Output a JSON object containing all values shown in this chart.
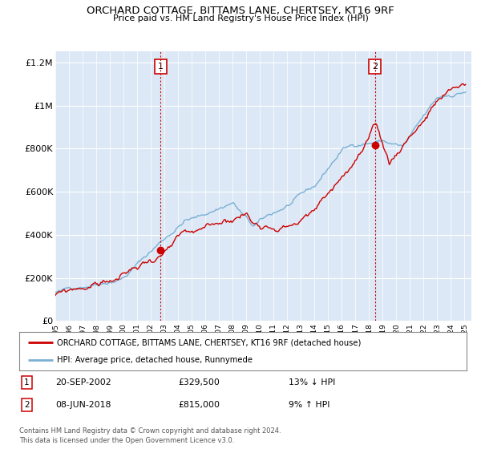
{
  "title": "ORCHARD COTTAGE, BITTAMS LANE, CHERTSEY, KT16 9RF",
  "subtitle": "Price paid vs. HM Land Registry's House Price Index (HPI)",
  "ylabel_ticks": [
    "£0",
    "£200K",
    "£400K",
    "£600K",
    "£800K",
    "£1M",
    "£1.2M"
  ],
  "ytick_values": [
    0,
    200000,
    400000,
    600000,
    800000,
    1000000,
    1200000
  ],
  "ylim": [
    0,
    1250000
  ],
  "xlim_start": 1995.0,
  "xlim_end": 2025.5,
  "sale1_x": 2002.72,
  "sale1_y": 329500,
  "sale2_x": 2018.44,
  "sale2_y": 815000,
  "legend_line1": "ORCHARD COTTAGE, BITTAMS LANE, CHERTSEY, KT16 9RF (detached house)",
  "legend_line2": "HPI: Average price, detached house, Runnymede",
  "table_row1_num": "1",
  "table_row1_date": "20-SEP-2002",
  "table_row1_price": "£329,500",
  "table_row1_hpi": "13% ↓ HPI",
  "table_row2_num": "2",
  "table_row2_date": "08-JUN-2018",
  "table_row2_price": "£815,000",
  "table_row2_hpi": "9% ↑ HPI",
  "footer": "Contains HM Land Registry data © Crown copyright and database right 2024.\nThis data is licensed under the Open Government Licence v3.0.",
  "line_color_property": "#cc0000",
  "line_color_hpi": "#7ab0d4",
  "background_color": "#ffffff",
  "plot_bg_color": "#dce8f5",
  "grid_color": "#ffffff",
  "vline_color": "#cc0000"
}
